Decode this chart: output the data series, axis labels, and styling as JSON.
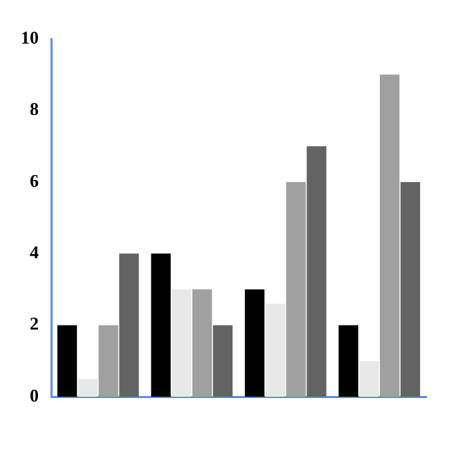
{
  "chart_data": {
    "type": "bar",
    "categories": [
      null,
      null,
      null,
      null
    ],
    "series": [
      {
        "color": "#000000",
        "values": [
          2,
          4,
          3,
          2
        ]
      },
      {
        "color": "#e8e8e8",
        "values": [
          0.5,
          3,
          2.6,
          1
        ]
      },
      {
        "color": "#a0a0a0",
        "values": [
          2,
          3,
          6,
          9
        ]
      },
      {
        "color": "#636363",
        "values": [
          4,
          2,
          7,
          6
        ]
      }
    ],
    "ylim": [
      0,
      10
    ],
    "yticks": [
      0,
      2,
      4,
      6,
      8,
      10
    ],
    "grid": false,
    "legend": false
  }
}
